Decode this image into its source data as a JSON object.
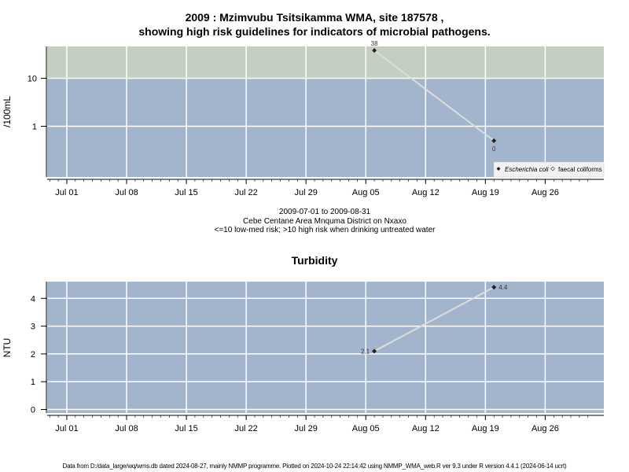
{
  "title_line1": "2009 : Mzimvubu Tsitsikamma WMA, site 187578 ,",
  "title_line2": "showing high risk guidelines for indicators of microbial pathogens.",
  "caption": {
    "line1": "2009-07-01 to 2009-08-31",
    "line2": "Cebe Centane Area Mnquma District on Nxaxo",
    "line3": "<=10 low-med risk; >10 high risk when drinking untreated water"
  },
  "footer": "Data from D:/data_large/wq/wms.db dated 2024-08-27, mainly NMMP programme. Plotted on 2024-10-24 22:14:42 using NMMP_WMA_web.R ver 9.3 under R version 4.4.1 (2024-06-14 ucrt)",
  "colors": {
    "low_risk_band": "#a3b5cc",
    "high_risk_band": "#c4cfc2",
    "line": "#dcdcdc",
    "grid": "#ffffff",
    "marker": "#222222"
  },
  "chart_data": [
    {
      "type": "line",
      "title": "",
      "xlabel": "",
      "ylabel": "/100mL",
      "x_ticks": [
        "Jul 01",
        "Jul 08",
        "Jul 15",
        "Jul 22",
        "Jul 29",
        "Aug 05",
        "Aug 12",
        "Aug 19",
        "Aug 26"
      ],
      "y_scale": "log",
      "y_ticks": [
        "1",
        "10"
      ],
      "guideline": 10,
      "bands": [
        {
          "label": "<=10 low-med risk"
        },
        {
          "label": ">10 high risk"
        }
      ],
      "legend": [
        "Escherichia coli",
        "faecal coliforms"
      ],
      "legend_position": "bottom-right",
      "series": [
        {
          "name": "Escherichia coli",
          "marker": "filled-diamond",
          "points": [
            {
              "x": "2009-08-06",
              "y": 38,
              "label": "38"
            },
            {
              "x": "2009-08-20",
              "y": 0.5,
              "label": "0"
            }
          ]
        }
      ]
    },
    {
      "type": "line",
      "title": "Turbidity",
      "xlabel": "",
      "ylabel": "NTU",
      "x_ticks": [
        "Jul 01",
        "Jul 08",
        "Jul 15",
        "Jul 22",
        "Jul 29",
        "Aug 05",
        "Aug 12",
        "Aug 19",
        "Aug 26"
      ],
      "y_ticks": [
        "0",
        "1",
        "2",
        "3",
        "4"
      ],
      "ylim": [
        -0.1,
        4.6
      ],
      "series": [
        {
          "name": "Turbidity",
          "marker": "filled-diamond",
          "points": [
            {
              "x": "2009-08-06",
              "y": 2.1,
              "label": "2.1"
            },
            {
              "x": "2009-08-20",
              "y": 4.4,
              "label": "4.4"
            }
          ]
        }
      ]
    }
  ]
}
